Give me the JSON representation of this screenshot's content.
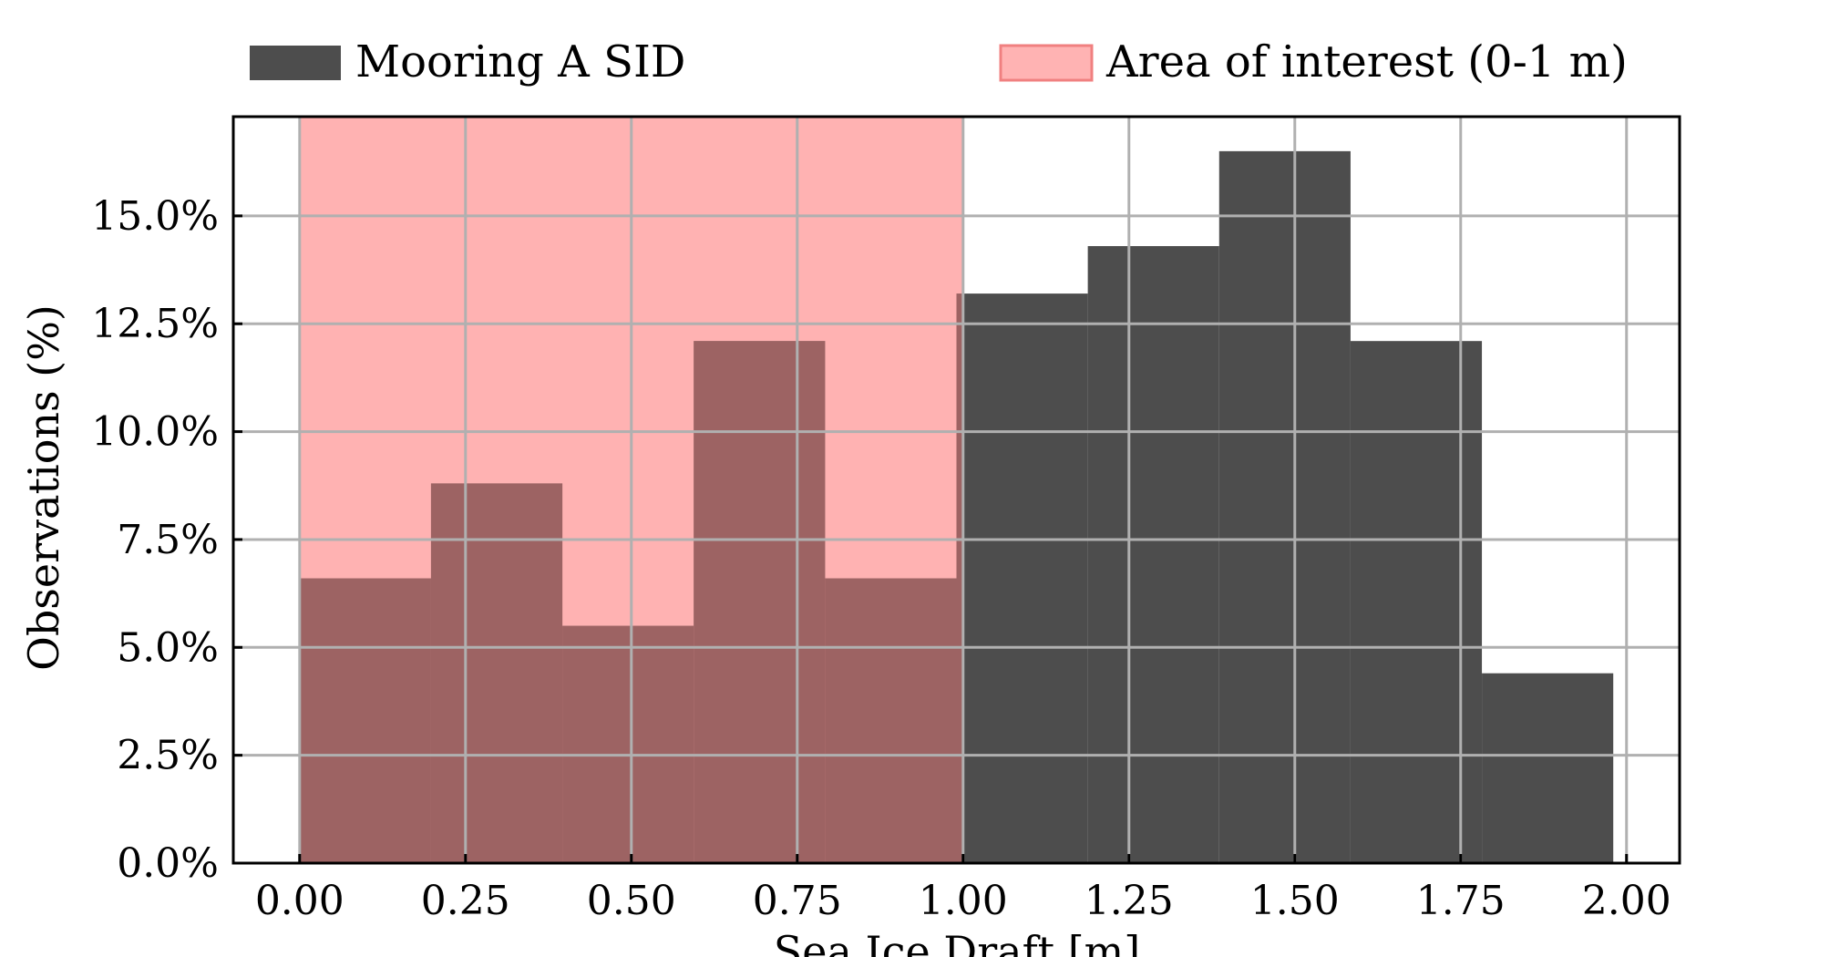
{
  "chart_data": {
    "type": "bar",
    "title": "",
    "xlabel": "Sea Ice Draft [m]",
    "ylabel": "Observations (%)",
    "xlim": [
      -0.1,
      2.08
    ],
    "ylim": [
      0,
      17.3
    ],
    "grid": true,
    "legend_placement": "top",
    "x_ticks": [
      0.0,
      0.25,
      0.5,
      0.75,
      1.0,
      1.25,
      1.5,
      1.75,
      2.0
    ],
    "x_tick_labels": [
      "0.00",
      "0.25",
      "0.50",
      "0.75",
      "1.00",
      "1.25",
      "1.50",
      "1.75",
      "2.00"
    ],
    "y_ticks": [
      0,
      2.5,
      5.0,
      7.5,
      10.0,
      12.5,
      15.0
    ],
    "y_tick_labels": [
      "0.0%",
      "2.5%",
      "5.0%",
      "7.5%",
      "10.0%",
      "12.5%",
      "15.0%"
    ],
    "series": [
      {
        "name": "Mooring A SID",
        "color": "#4d4d4d",
        "bins": [
          {
            "x0": 0.0,
            "x1": 0.198,
            "value": 6.6
          },
          {
            "x0": 0.198,
            "x1": 0.396,
            "value": 8.8
          },
          {
            "x0": 0.396,
            "x1": 0.594,
            "value": 5.5
          },
          {
            "x0": 0.594,
            "x1": 0.792,
            "value": 12.1
          },
          {
            "x0": 0.792,
            "x1": 0.99,
            "value": 6.6
          },
          {
            "x0": 0.99,
            "x1": 1.188,
            "value": 13.2
          },
          {
            "x0": 1.188,
            "x1": 1.386,
            "value": 14.3
          },
          {
            "x0": 1.386,
            "x1": 1.584,
            "value": 16.5
          },
          {
            "x0": 1.584,
            "x1": 1.782,
            "value": 12.1
          },
          {
            "x0": 1.782,
            "x1": 1.98,
            "value": 4.4
          }
        ]
      }
    ],
    "shaded_region": {
      "name": "Area of interest (0-1 m)",
      "x0": 0.0,
      "x1": 1.0,
      "color": "#ff7f7f",
      "alpha": 0.6
    }
  }
}
